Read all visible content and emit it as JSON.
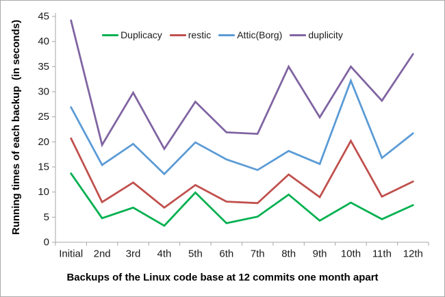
{
  "chart_data": {
    "type": "line",
    "xlabel": "Backups of the Linux code base at 12 commits one month apart",
    "ylabel": "Running times of each backup  (in seconds)",
    "categories": [
      "Initial",
      "2nd",
      "3rd",
      "4th",
      "5th",
      "6th",
      "7th",
      "8th",
      "9th",
      "10th",
      "11th",
      "12th"
    ],
    "series": [
      {
        "name": "Duplicacy",
        "color": "#00B050",
        "values": [
          13.7,
          4.8,
          6.9,
          3.3,
          9.9,
          3.8,
          5.1,
          9.5,
          4.3,
          7.9,
          4.6,
          7.4
        ]
      },
      {
        "name": "restic",
        "color": "#C0504D",
        "values": [
          20.7,
          8.0,
          11.9,
          6.9,
          11.4,
          8.1,
          7.8,
          13.5,
          9.0,
          20.2,
          9.1,
          12.1
        ]
      },
      {
        "name": "Attic(Borg)",
        "color": "#5B9BD5",
        "values": [
          26.9,
          15.4,
          19.6,
          13.6,
          19.9,
          16.5,
          14.4,
          18.2,
          15.6,
          32.2,
          16.8,
          21.7
        ]
      },
      {
        "name": "duplicity",
        "color": "#8064A2",
        "values": [
          44.2,
          19.4,
          29.8,
          18.6,
          28.0,
          21.9,
          21.6,
          35.0,
          24.9,
          35.0,
          28.2,
          37.5
        ]
      }
    ],
    "y_ticks": [
      0,
      5,
      10,
      15,
      20,
      25,
      30,
      35,
      40,
      45
    ],
    "ylim": [
      0,
      45
    ],
    "grid": false,
    "legend_position": "top-center",
    "axis_color": "#A6A6A6",
    "tick_label_color": "#1a1a1a"
  }
}
